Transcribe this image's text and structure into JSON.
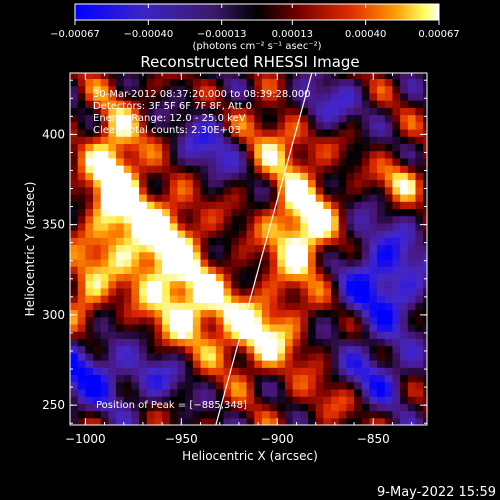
{
  "chart_data": {
    "type": "heatmap",
    "title": "Reconstructed RHESSI Image",
    "xlabel": "Heliocentric X (arcsec)",
    "ylabel": "Heliocentric Y (arcsec)",
    "xlim": [
      -1008,
      -822
    ],
    "ylim": [
      239,
      434
    ],
    "x_ticks": [
      -1000,
      -950,
      -900,
      -850
    ],
    "x_tick_labels": [
      "−1000",
      "−950",
      "−900",
      "−850"
    ],
    "y_ticks": [
      250,
      300,
      350,
      400
    ],
    "y_tick_labels": [
      "250",
      "300",
      "350",
      "400"
    ],
    "colorbar": {
      "ticks": [
        -0.00067,
        -0.0004,
        -0.00013,
        0.00013,
        0.0004,
        0.00067
      ],
      "tick_labels": [
        "−0.00067",
        "−0.00040",
        "−0.00013",
        "0.00013",
        "0.00040",
        "0.00067"
      ],
      "unit_label": "(photons cm⁻² s⁻¹ asec⁻²)",
      "colors": [
        "#0000ff",
        "#4b1aa0",
        "#000000",
        "#7a0000",
        "#e03000",
        "#ff8c00",
        "#ffff60",
        "#ffffff"
      ]
    },
    "annotations": [
      "30-Mar-2012 08:37:20.000 to 08:39:28.000",
      "Detectors: 3F 5F 6F 7F 8F, Att 0",
      "Energy Range: 12.0 - 25.0 keV",
      "Clean    Total counts: 2.30E+03"
    ],
    "peak_label": "Position of Peak = [−885,348]",
    "limb": [
      [
        -882,
        434
      ],
      [
        -932,
        239
      ]
    ],
    "bright_regions": [
      {
        "x": -985,
        "y": 375,
        "level": 1.0,
        "sx": 10,
        "sy": 28
      },
      {
        "x": -960,
        "y": 340,
        "level": 0.95,
        "sx": 14,
        "sy": 20
      },
      {
        "x": -945,
        "y": 305,
        "level": 0.75,
        "sx": 14,
        "sy": 16
      },
      {
        "x": -887,
        "y": 348,
        "level": 1.0,
        "sx": 12,
        "sy": 20
      },
      {
        "x": -910,
        "y": 290,
        "level": 0.75,
        "sx": 16,
        "sy": 16
      },
      {
        "x": -895,
        "y": 395,
        "level": 0.55,
        "sx": 12,
        "sy": 12
      },
      {
        "x": -1000,
        "y": 310,
        "level": 0.6,
        "sx": 8,
        "sy": 18
      },
      {
        "x": -835,
        "y": 375,
        "level": 0.7,
        "sx": 8,
        "sy": 8
      },
      {
        "x": -870,
        "y": 255,
        "level": 0.35,
        "sx": 14,
        "sy": 10
      },
      {
        "x": -910,
        "y": 410,
        "level": 0.35,
        "sx": 14,
        "sy": 10
      }
    ],
    "dark_regions": [
      {
        "x": -1000,
        "y": 270,
        "level": -0.75,
        "sx": 14,
        "sy": 16
      },
      {
        "x": -845,
        "y": 320,
        "level": -0.8,
        "sx": 16,
        "sy": 22
      },
      {
        "x": -850,
        "y": 265,
        "level": -0.6,
        "sx": 14,
        "sy": 12
      },
      {
        "x": -880,
        "y": 415,
        "level": -0.6,
        "sx": 14,
        "sy": 10
      },
      {
        "x": -935,
        "y": 395,
        "level": -0.55,
        "sx": 12,
        "sy": 14
      },
      {
        "x": -965,
        "y": 265,
        "level": -0.5,
        "sx": 12,
        "sy": 10
      }
    ]
  },
  "footer": {
    "date": "9-May-2022 15:59"
  }
}
